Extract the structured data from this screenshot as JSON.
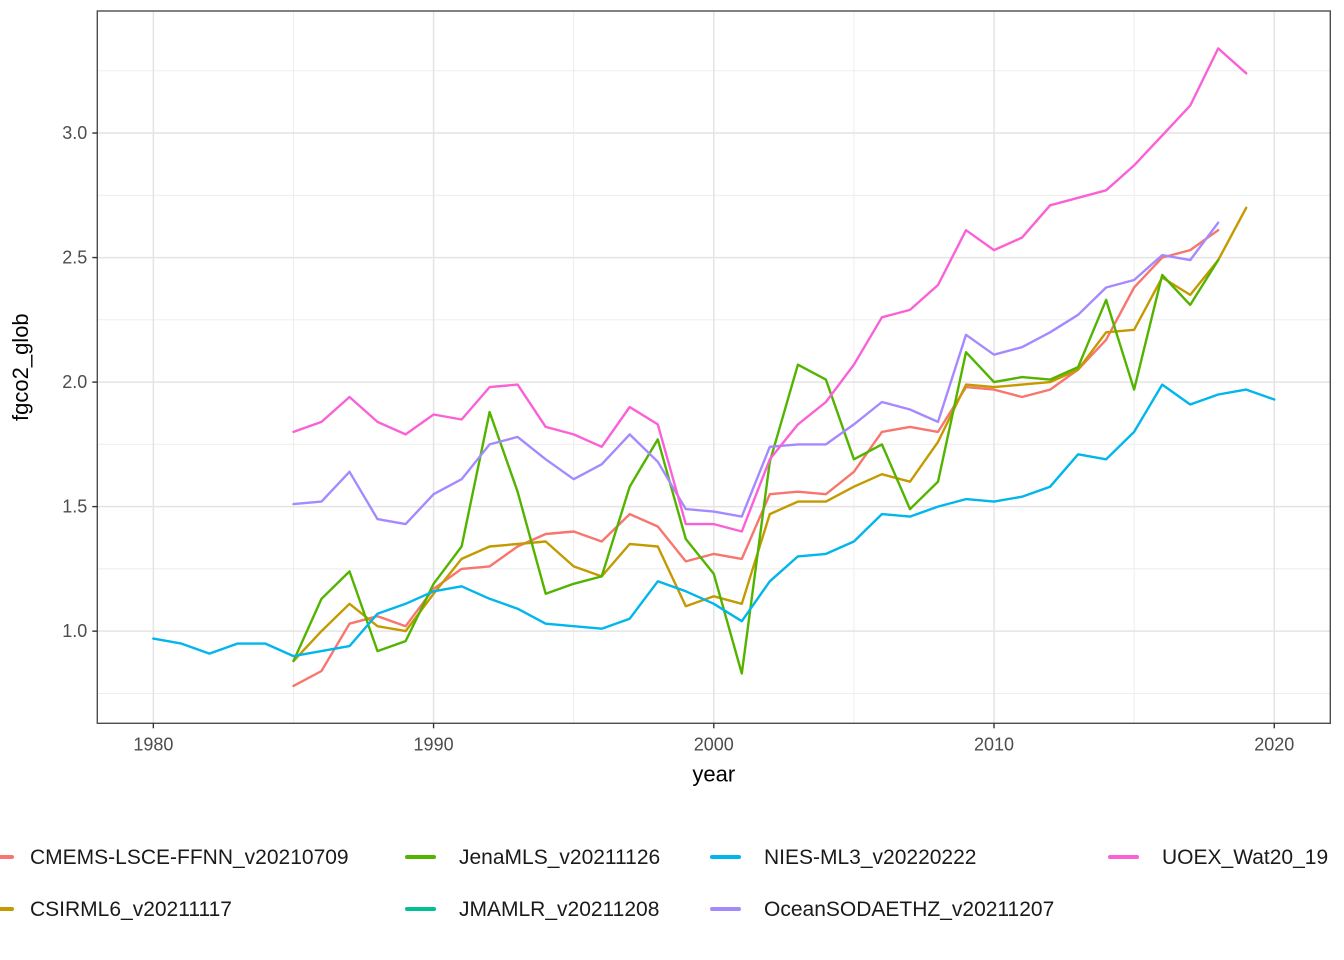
{
  "chart_data": {
    "type": "line",
    "title": "",
    "xlabel": "year",
    "ylabel": "fgco2_glob",
    "x_ticks": [
      1980,
      1990,
      2000,
      2010,
      2020
    ],
    "x_tick_labels": [
      "1980",
      "1990",
      "2000",
      "2010",
      "2020"
    ],
    "y_ticks": [
      1.0,
      1.5,
      2.0,
      2.5,
      3.0
    ],
    "y_tick_labels": [
      "1.0",
      "1.5",
      "2.0",
      "2.5",
      "3.0"
    ],
    "x_minor_ticks": [
      1985,
      1995,
      2005,
      2015
    ],
    "y_minor_ticks": [
      0.75,
      1.25,
      1.75,
      2.25,
      2.75,
      3.25
    ],
    "xlim": [
      1978,
      2022
    ],
    "ylim": [
      0.63,
      3.49
    ],
    "grid": true,
    "legend_position": "bottom",
    "series": [
      {
        "name": "CMEMS-LSCE-FFNN_v20210709",
        "color": "#F8766D",
        "x": [
          1985,
          1986,
          1987,
          1988,
          1989,
          1990,
          1991,
          1992,
          1993,
          1994,
          1995,
          1996,
          1997,
          1998,
          1999,
          2000,
          2001,
          2002,
          2003,
          2004,
          2005,
          2006,
          2007,
          2008,
          2009,
          2010,
          2011,
          2012,
          2013,
          2014,
          2015,
          2016,
          2017,
          2018
        ],
        "values": [
          0.78,
          0.84,
          1.03,
          1.06,
          1.02,
          1.17,
          1.25,
          1.26,
          1.34,
          1.39,
          1.4,
          1.36,
          1.47,
          1.42,
          1.28,
          1.31,
          1.29,
          1.55,
          1.56,
          1.55,
          1.64,
          1.8,
          1.82,
          1.8,
          1.98,
          1.97,
          1.94,
          1.97,
          2.05,
          2.17,
          2.38,
          2.5,
          2.53,
          2.61
        ]
      },
      {
        "name": "CSIRML6_v20211117",
        "color": "#C49A00",
        "x": [
          1985,
          1986,
          1987,
          1988,
          1989,
          1990,
          1991,
          1992,
          1993,
          1994,
          1995,
          1996,
          1997,
          1998,
          1999,
          2000,
          2001,
          2002,
          2003,
          2004,
          2005,
          2006,
          2007,
          2008,
          2009,
          2010,
          2011,
          2012,
          2013,
          2014,
          2015,
          2016,
          2017,
          2018,
          2019
        ],
        "values": [
          0.88,
          1.0,
          1.11,
          1.02,
          1.0,
          1.15,
          1.29,
          1.34,
          1.35,
          1.36,
          1.26,
          1.22,
          1.35,
          1.34,
          1.1,
          1.14,
          1.11,
          1.47,
          1.52,
          1.52,
          1.58,
          1.63,
          1.6,
          1.76,
          1.99,
          1.98,
          1.99,
          2.0,
          2.05,
          2.2,
          2.21,
          2.42,
          2.35,
          2.49,
          2.7
        ]
      },
      {
        "name": "JenaMLS_v20211126",
        "color": "#53B400",
        "x": [
          1985,
          1986,
          1987,
          1988,
          1989,
          1990,
          1991,
          1992,
          1993,
          1994,
          1995,
          1996,
          1997,
          1998,
          1999,
          2000,
          2001,
          2002,
          2003,
          2004,
          2005,
          2006,
          2007,
          2008,
          2009,
          2010,
          2011,
          2012,
          2013,
          2014,
          2015,
          2016,
          2017,
          2018
        ],
        "values": [
          0.88,
          1.13,
          1.24,
          0.92,
          0.96,
          1.19,
          1.34,
          1.88,
          1.56,
          1.15,
          1.19,
          1.22,
          1.58,
          1.77,
          1.37,
          1.23,
          0.83,
          1.68,
          2.07,
          2.01,
          1.69,
          1.75,
          1.49,
          1.6,
          2.12,
          2.0,
          2.02,
          2.01,
          2.06,
          2.33,
          1.97,
          2.43,
          2.31,
          2.49
        ]
      },
      {
        "name": "JMAMLR_v20211208",
        "color": "#00C094",
        "x": [],
        "values": [],
        "note": "legend entry only; no line visible in plot panel"
      },
      {
        "name": "NIES-ML3_v20220222",
        "color": "#00B6EB",
        "x": [
          1980,
          1981,
          1982,
          1983,
          1984,
          1985,
          1986,
          1987,
          1988,
          1989,
          1990,
          1991,
          1992,
          1993,
          1994,
          1995,
          1996,
          1997,
          1998,
          1999,
          2000,
          2001,
          2002,
          2003,
          2004,
          2005,
          2006,
          2007,
          2008,
          2009,
          2010,
          2011,
          2012,
          2013,
          2014,
          2015,
          2016,
          2017,
          2018,
          2019,
          2020
        ],
        "values": [
          0.97,
          0.95,
          0.91,
          0.95,
          0.95,
          0.9,
          0.92,
          0.94,
          1.07,
          1.11,
          1.16,
          1.18,
          1.13,
          1.09,
          1.03,
          1.02,
          1.01,
          1.05,
          1.2,
          1.16,
          1.11,
          1.04,
          1.2,
          1.3,
          1.31,
          1.36,
          1.47,
          1.46,
          1.5,
          1.53,
          1.52,
          1.54,
          1.58,
          1.71,
          1.69,
          1.8,
          1.99,
          1.91,
          1.95,
          1.97,
          1.93
        ]
      },
      {
        "name": "OceanSODAETHZ_v20211207",
        "color": "#A58AFF",
        "x": [
          1985,
          1986,
          1987,
          1988,
          1989,
          1990,
          1991,
          1992,
          1993,
          1994,
          1995,
          1996,
          1997,
          1998,
          1999,
          2000,
          2001,
          2002,
          2003,
          2004,
          2005,
          2006,
          2007,
          2008,
          2009,
          2010,
          2011,
          2012,
          2013,
          2014,
          2015,
          2016,
          2017,
          2018
        ],
        "values": [
          1.51,
          1.52,
          1.64,
          1.45,
          1.43,
          1.55,
          1.61,
          1.75,
          1.78,
          1.69,
          1.61,
          1.67,
          1.79,
          1.68,
          1.49,
          1.48,
          1.46,
          1.74,
          1.75,
          1.75,
          1.83,
          1.92,
          1.89,
          1.84,
          2.19,
          2.11,
          2.14,
          2.2,
          2.27,
          2.38,
          2.41,
          2.51,
          2.49,
          2.64
        ]
      },
      {
        "name": "UOEX_Wat20_19",
        "color": "#FB61D7",
        "x": [
          1985,
          1986,
          1987,
          1988,
          1989,
          1990,
          1991,
          1992,
          1993,
          1994,
          1995,
          1996,
          1997,
          1998,
          1999,
          2000,
          2001,
          2002,
          2003,
          2004,
          2005,
          2006,
          2007,
          2008,
          2009,
          2010,
          2011,
          2012,
          2013,
          2014,
          2015,
          2016,
          2017,
          2018,
          2019
        ],
        "values": [
          1.8,
          1.84,
          1.94,
          1.84,
          1.79,
          1.87,
          1.85,
          1.98,
          1.99,
          1.82,
          1.79,
          1.74,
          1.9,
          1.83,
          1.43,
          1.43,
          1.4,
          1.69,
          1.83,
          1.92,
          2.07,
          2.26,
          2.29,
          2.39,
          2.61,
          2.53,
          2.58,
          2.71,
          2.74,
          2.77,
          2.87,
          2.99,
          3.11,
          3.34,
          3.24
        ]
      }
    ]
  },
  "legend": {
    "items": [
      {
        "label": "CMEMS-LSCE-FFNN_v20210709",
        "color": "#F8766D"
      },
      {
        "label": "JenaMLS_v20211126",
        "color": "#53B400"
      },
      {
        "label": "NIES-ML3_v20220222",
        "color": "#00B6EB"
      },
      {
        "label": "UOEX_Wat20_19",
        "color": "#FB61D7"
      },
      {
        "label": "CSIRML6_v20211117",
        "color": "#C49A00"
      },
      {
        "label": "JMAMLR_v20211208",
        "color": "#00C094"
      },
      {
        "label": "OceanSODAETHZ_v20211207",
        "color": "#A58AFF"
      }
    ]
  },
  "style": {
    "panel_border_color": "#4d4d4d",
    "grid_major_color": "#e4e4e4",
    "grid_minor_color": "#ececec",
    "tick_color": "#333333",
    "tick_label_color": "#4d4d4d",
    "axis_title_color": "#000000"
  }
}
